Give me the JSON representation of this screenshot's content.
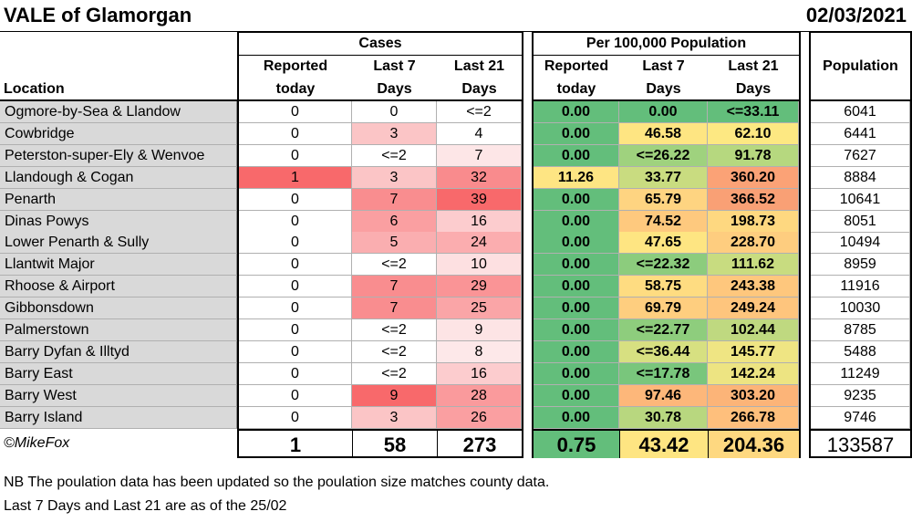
{
  "title": "VALE of Glamorgan",
  "date": "02/03/2021",
  "groups": {
    "cases": "Cases",
    "per100k": "Per 100,000 Population"
  },
  "headers": {
    "location": "Location",
    "reported_1": "Reported",
    "reported_2": "today",
    "last7_1": "Last 7",
    "last7_2": "Days",
    "last21_1": "Last 21",
    "last21_2": "Days",
    "population": "Population"
  },
  "rows": [
    {
      "location": "Ogmore-by-Sea & Llandow",
      "rep": "0",
      "l7": "0",
      "l21": "<=2",
      "prep": "0.00",
      "p7": "0.00",
      "p21": "<=33.11",
      "pop": "6041",
      "c_rep": "#ffffff",
      "c_l7": "#ffffff",
      "c_l21": "#ffffff",
      "c_prep": "#63be7b",
      "c_p7": "#63be7b",
      "c_p21": "#63be7b"
    },
    {
      "location": "Cowbridge",
      "rep": "0",
      "l7": "3",
      "l21": "4",
      "prep": "0.00",
      "p7": "46.58",
      "p21": "62.10",
      "pop": "6441",
      "c_rep": "#ffffff",
      "c_l7": "#fbc5c6",
      "c_l21": "#ffffff",
      "c_prep": "#63be7b",
      "c_p7": "#fee582",
      "c_p21": "#fde882"
    },
    {
      "location": "Peterston-super-Ely & Wenvoe",
      "rep": "0",
      "l7": "<=2",
      "l21": "7",
      "prep": "0.00",
      "p7": "<=26.22",
      "p21": "91.78",
      "pop": "7627",
      "c_rep": "#ffffff",
      "c_l7": "#ffffff",
      "c_l21": "#fde6e7",
      "c_prep": "#63be7b",
      "c_p7": "#9fd27e",
      "c_p21": "#b6d87f"
    },
    {
      "location": "Llandough & Cogan",
      "rep": "1",
      "l7": "3",
      "l21": "32",
      "prep": "11.26",
      "p7": "33.77",
      "p21": "360.20",
      "pop": "8884",
      "c_rep": "#f8696b",
      "c_l7": "#fbc5c6",
      "c_l21": "#f98b8d",
      "c_prep": "#fee583",
      "c_p7": "#c9dc80",
      "c_p21": "#fba276"
    },
    {
      "location": "Penarth",
      "rep": "0",
      "l7": "7",
      "l21": "39",
      "prep": "0.00",
      "p7": "65.79",
      "p21": "366.52",
      "pop": "10641",
      "c_rep": "#ffffff",
      "c_l7": "#f98d8f",
      "c_l21": "#f8696b",
      "c_prep": "#63be7b",
      "c_p7": "#fed481",
      "c_p21": "#f9a075"
    },
    {
      "location": "Dinas Powys",
      "rep": "0",
      "l7": "6",
      "l21": "16",
      "prep": "0.00",
      "p7": "74.52",
      "p21": "198.73",
      "pop": "8051",
      "c_rep": "#ffffff",
      "c_l7": "#fa9fa1",
      "c_l21": "#fcccce",
      "c_prep": "#63be7b",
      "c_p7": "#fec97e",
      "c_p21": "#fed880"
    },
    {
      "location": "Lower Penarth & Sully",
      "rep": "0",
      "l7": "5",
      "l21": "24",
      "prep": "0.00",
      "p7": "47.65",
      "p21": "228.70",
      "pop": "10494",
      "c_rep": "#ffffff",
      "c_l7": "#faaeb0",
      "c_l21": "#fbadaf",
      "c_prep": "#63be7b",
      "c_p7": "#fee582",
      "c_p21": "#fecd7f"
    },
    {
      "location": "Llantwit Major",
      "rep": "0",
      "l7": "<=2",
      "l21": "10",
      "prep": "0.00",
      "p7": "<=22.32",
      "p21": "111.62",
      "pop": "8959",
      "c_rep": "#ffffff",
      "c_l7": "#ffffff",
      "c_l21": "#fde0e1",
      "c_prep": "#63be7b",
      "c_p7": "#8ccc7d",
      "c_p21": "#c8dc80"
    },
    {
      "location": "Rhoose & Airport",
      "rep": "0",
      "l7": "7",
      "l21": "29",
      "prep": "0.00",
      "p7": "58.75",
      "p21": "243.38",
      "pop": "11916",
      "c_rep": "#ffffff",
      "c_l7": "#f98d8f",
      "c_l21": "#fa9496",
      "c_prep": "#63be7b",
      "c_p7": "#fedc81",
      "c_p21": "#fec77d"
    },
    {
      "location": "Gibbonsdown",
      "rep": "0",
      "l7": "7",
      "l21": "25",
      "prep": "0.00",
      "p7": "69.79",
      "p21": "249.24",
      "pop": "10030",
      "c_rep": "#ffffff",
      "c_l7": "#f98d8f",
      "c_l21": "#faa5a7",
      "c_prep": "#63be7b",
      "c_p7": "#fece7f",
      "c_p21": "#fec57d"
    },
    {
      "location": "Palmerstown",
      "rep": "0",
      "l7": "<=2",
      "l21": "9",
      "prep": "0.00",
      "p7": "<=22.77",
      "p21": "102.44",
      "pop": "8785",
      "c_rep": "#ffffff",
      "c_l7": "#ffffff",
      "c_l21": "#fde4e5",
      "c_prep": "#63be7b",
      "c_p7": "#8ecd7d",
      "c_p21": "#bfd980"
    },
    {
      "location": "Barry Dyfan & Illtyd",
      "rep": "0",
      "l7": "<=2",
      "l21": "8",
      "prep": "0.00",
      "p7": "<=36.44",
      "p21": "145.77",
      "pop": "5488",
      "c_rep": "#ffffff",
      "c_l7": "#ffffff",
      "c_l21": "#fde8e9",
      "c_prep": "#63be7b",
      "c_p7": "#d7e081",
      "c_p21": "#efe583"
    },
    {
      "location": "Barry East",
      "rep": "0",
      "l7": "<=2",
      "l21": "16",
      "prep": "0.00",
      "p7": "<=17.78",
      "p21": "142.24",
      "pop": "11249",
      "c_rep": "#ffffff",
      "c_l7": "#ffffff",
      "c_l21": "#fcccce",
      "c_prep": "#63be7b",
      "c_p7": "#79c67c",
      "c_p21": "#ede482"
    },
    {
      "location": "Barry West",
      "rep": "0",
      "l7": "9",
      "l21": "28",
      "prep": "0.00",
      "p7": "97.46",
      "p21": "303.20",
      "pop": "9235",
      "c_rep": "#ffffff",
      "c_l7": "#f8696b",
      "c_l21": "#fa9a9c",
      "c_prep": "#63be7b",
      "c_p7": "#fdb77a",
      "c_p21": "#fcb478"
    },
    {
      "location": "Barry Island",
      "rep": "0",
      "l7": "3",
      "l21": "26",
      "prep": "0.00",
      "p7": "30.78",
      "p21": "266.78",
      "pop": "9746",
      "c_rep": "#ffffff",
      "c_l7": "#fbc5c6",
      "c_l21": "#fa9fa1",
      "c_prep": "#63be7b",
      "c_p7": "#b8d77f",
      "c_p21": "#febf7c"
    }
  ],
  "totals": {
    "credit": "©MikeFox",
    "rep": "1",
    "l7": "58",
    "l21": "273",
    "prep": "0.75",
    "p7": "43.42",
    "p21": "204.36",
    "pop": "133587",
    "c_prep": "#63be7b",
    "c_p7": "#fee582",
    "c_p21": "#fed880"
  },
  "notes": [
    "NB The poulation data has been updated so the poulation size matches county data.",
    "Last 7 Days and Last 21 are as of the 25/02"
  ]
}
